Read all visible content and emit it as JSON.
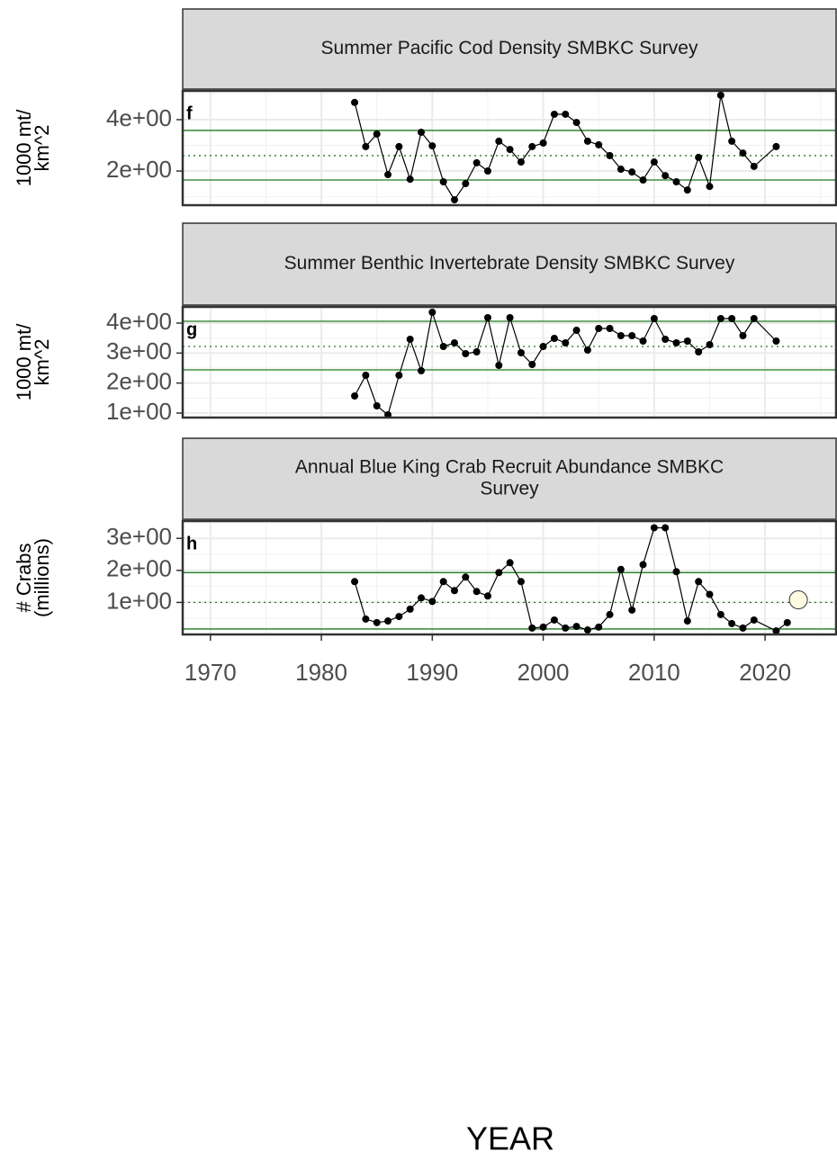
{
  "chart_data": [
    {
      "type": "line",
      "panel_label": "f",
      "title_lines": [
        "Summer Pacific Cod Density SMBKC Survey"
      ],
      "ylabel_lines": [
        "1000 mt/",
        "km^2"
      ],
      "x": [
        1983,
        1984,
        1985,
        1986,
        1987,
        1988,
        1989,
        1990,
        1991,
        1992,
        1993,
        1994,
        1995,
        1996,
        1997,
        1998,
        1999,
        2000,
        2001,
        2002,
        2003,
        2004,
        2005,
        2006,
        2007,
        2008,
        2009,
        2010,
        2011,
        2012,
        2013,
        2014,
        2015,
        2016,
        2017,
        2018,
        2019,
        2021
      ],
      "values": [
        4.67,
        2.95,
        3.44,
        1.86,
        2.95,
        1.68,
        3.51,
        2.98,
        1.58,
        0.88,
        1.51,
        2.32,
        2.0,
        3.16,
        2.84,
        2.35,
        2.95,
        3.09,
        4.21,
        4.21,
        3.89,
        3.16,
        3.02,
        2.6,
        2.07,
        1.96,
        1.65,
        2.35,
        1.82,
        1.58,
        1.26,
        2.53,
        1.4,
        4.95,
        3.16,
        2.7,
        2.18,
        2.95
      ],
      "color": "#000000",
      "ylim": [
        0.67,
        5.12
      ],
      "yticks": [
        {
          "value": 2,
          "label": "2e+00"
        },
        {
          "value": 4,
          "label": "4e+00"
        }
      ],
      "reference_lines": [
        {
          "value": 3.58,
          "color": "#1e7b1e",
          "style": "solid"
        },
        {
          "value": 2.6,
          "color": "#1e7b1e",
          "style": "dotted"
        },
        {
          "value": 1.65,
          "color": "#1e7b1e",
          "style": "solid"
        }
      ],
      "grid": true
    },
    {
      "type": "line",
      "panel_label": "g",
      "title_lines": [
        "Summer Benthic Invertebrate Density SMBKC Survey"
      ],
      "ylabel_lines": [
        "1000 mt/",
        "km^2"
      ],
      "x": [
        1983,
        1984,
        1985,
        1986,
        1987,
        1988,
        1989,
        1990,
        1991,
        1992,
        1993,
        1994,
        1995,
        1996,
        1997,
        1998,
        1999,
        2000,
        2001,
        2002,
        2003,
        2004,
        2005,
        2006,
        2007,
        2008,
        2009,
        2010,
        2011,
        2012,
        2013,
        2014,
        2015,
        2016,
        2017,
        2018,
        2019,
        2021
      ],
      "values": [
        1.57,
        2.26,
        1.24,
        0.94,
        2.26,
        3.46,
        2.41,
        4.36,
        3.22,
        3.34,
        2.98,
        3.04,
        4.18,
        2.59,
        4.18,
        3.01,
        2.62,
        3.22,
        3.49,
        3.34,
        3.76,
        3.1,
        3.82,
        3.82,
        3.58,
        3.58,
        3.4,
        4.15,
        3.46,
        3.34,
        3.4,
        3.04,
        3.28,
        4.15,
        4.15,
        3.58,
        4.15,
        3.4
      ],
      "color": "#000000",
      "ylim": [
        0.85,
        4.54
      ],
      "yticks": [
        {
          "value": 1,
          "label": "1e+00"
        },
        {
          "value": 2,
          "label": "2e+00"
        },
        {
          "value": 3,
          "label": "3e+00"
        },
        {
          "value": 4,
          "label": "4e+00"
        }
      ],
      "reference_lines": [
        {
          "value": 4.06,
          "color": "#1e7b1e",
          "style": "solid"
        },
        {
          "value": 3.22,
          "color": "#1e7b1e",
          "style": "dotted"
        },
        {
          "value": 2.44,
          "color": "#1e7b1e",
          "style": "solid"
        }
      ],
      "grid": true
    },
    {
      "type": "line",
      "panel_label": "h",
      "title_lines": [
        "Annual Blue King Crab Recruit Abundance SMBKC",
        "Survey"
      ],
      "ylabel_lines": [
        "# Crabs",
        "(millions)"
      ],
      "x": [
        1983,
        1984,
        1985,
        1986,
        1987,
        1988,
        1989,
        1990,
        1991,
        1992,
        1993,
        1994,
        1995,
        1996,
        1997,
        1998,
        1999,
        2000,
        2001,
        2002,
        2003,
        2004,
        2005,
        2006,
        2007,
        2008,
        2009,
        2010,
        2011,
        2012,
        2013,
        2014,
        2015,
        2016,
        2017,
        2018,
        2019,
        2021,
        2022
      ],
      "values": [
        1.65,
        0.48,
        0.37,
        0.42,
        0.56,
        0.79,
        1.14,
        1.03,
        1.65,
        1.37,
        1.79,
        1.34,
        1.2,
        1.93,
        2.24,
        1.65,
        0.2,
        0.23,
        0.45,
        0.2,
        0.25,
        0.14,
        0.23,
        0.62,
        2.03,
        0.76,
        2.18,
        3.33,
        3.33,
        1.96,
        0.42,
        1.65,
        1.25,
        0.62,
        0.34,
        0.2,
        0.45,
        0.11,
        0.37
      ],
      "color": "#000000",
      "highlight": {
        "x": 2023,
        "value": 1.08,
        "color": "#fdfbe1"
      },
      "ylim": [
        0,
        3.54
      ],
      "yticks": [
        {
          "value": 1,
          "label": "1e+00"
        },
        {
          "value": 2,
          "label": "2e+00"
        },
        {
          "value": 3,
          "label": "3e+00"
        }
      ],
      "reference_lines": [
        {
          "value": 1.93,
          "color": "#1e7b1e",
          "style": "solid"
        },
        {
          "value": 1.0,
          "color": "#1e7b1e",
          "style": "dotted"
        },
        {
          "value": 0.17,
          "color": "#1e7b1e",
          "style": "solid"
        }
      ],
      "grid": true
    }
  ],
  "shared_x": {
    "label": "YEAR",
    "xlim": [
      1967.5,
      2026.4
    ],
    "xticks": [
      1970,
      1980,
      1990,
      2000,
      2010,
      2020
    ]
  }
}
